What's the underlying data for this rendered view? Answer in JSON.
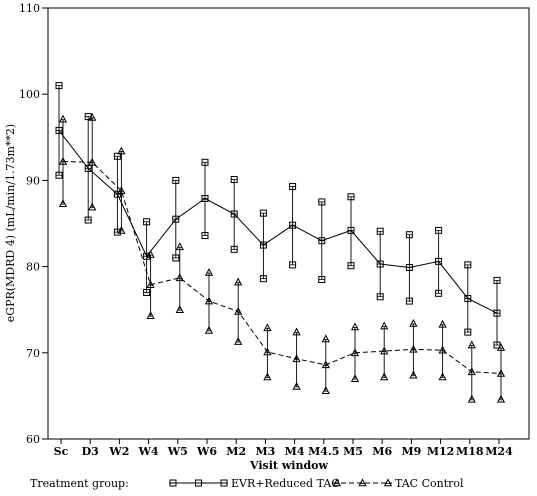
{
  "chart_data": {
    "type": "line",
    "xlabel": "Visit window",
    "ylabel": "eGPR(MDRD 4) (mL/min/1.73m**2)",
    "ylim": [
      60,
      110
    ],
    "yticks": [
      60,
      70,
      80,
      90,
      100,
      110
    ],
    "categories": [
      "Sc",
      "D3",
      "W2",
      "W4",
      "W5",
      "W6",
      "M2",
      "M3",
      "M4",
      "M4.5",
      "M5",
      "M6",
      "M9",
      "M12",
      "M18",
      "M24"
    ],
    "grid": false,
    "legend": {
      "title": "Treatment group:",
      "position": "bottom"
    },
    "series": [
      {
        "name": "EVR+Reduced TAC",
        "marker": "square",
        "line_style": "solid",
        "mean": [
          95.8,
          91.4,
          88.4,
          81.2,
          85.5,
          87.9,
          86.1,
          82.5,
          84.8,
          83.0,
          84.2,
          80.3,
          79.9,
          80.6,
          76.3,
          74.6
        ],
        "upper": [
          101.0,
          97.4,
          92.8,
          85.2,
          90.0,
          92.1,
          90.1,
          86.2,
          89.3,
          87.5,
          88.1,
          84.1,
          83.7,
          84.2,
          80.2,
          78.4
        ],
        "lower": [
          90.6,
          85.4,
          84.0,
          77.0,
          81.0,
          83.6,
          82.0,
          78.6,
          80.2,
          78.5,
          80.1,
          76.5,
          76.0,
          76.9,
          72.4,
          70.9
        ]
      },
      {
        "name": "TAC Control",
        "marker": "triangle",
        "line_style": "dashed",
        "mean": [
          92.2,
          92.1,
          88.8,
          77.9,
          78.7,
          76.0,
          74.8,
          70.1,
          69.3,
          68.6,
          70.0,
          70.2,
          70.4,
          70.3,
          67.8,
          67.6
        ],
        "upper": [
          97.1,
          97.3,
          93.4,
          81.4,
          82.3,
          79.3,
          78.2,
          72.9,
          72.4,
          71.6,
          73.0,
          73.1,
          73.4,
          73.3,
          70.9,
          70.6
        ],
        "lower": [
          87.3,
          86.9,
          84.2,
          74.3,
          75.0,
          72.6,
          71.3,
          67.2,
          66.1,
          65.6,
          67.0,
          67.2,
          67.4,
          67.2,
          64.6,
          64.6
        ]
      }
    ]
  }
}
